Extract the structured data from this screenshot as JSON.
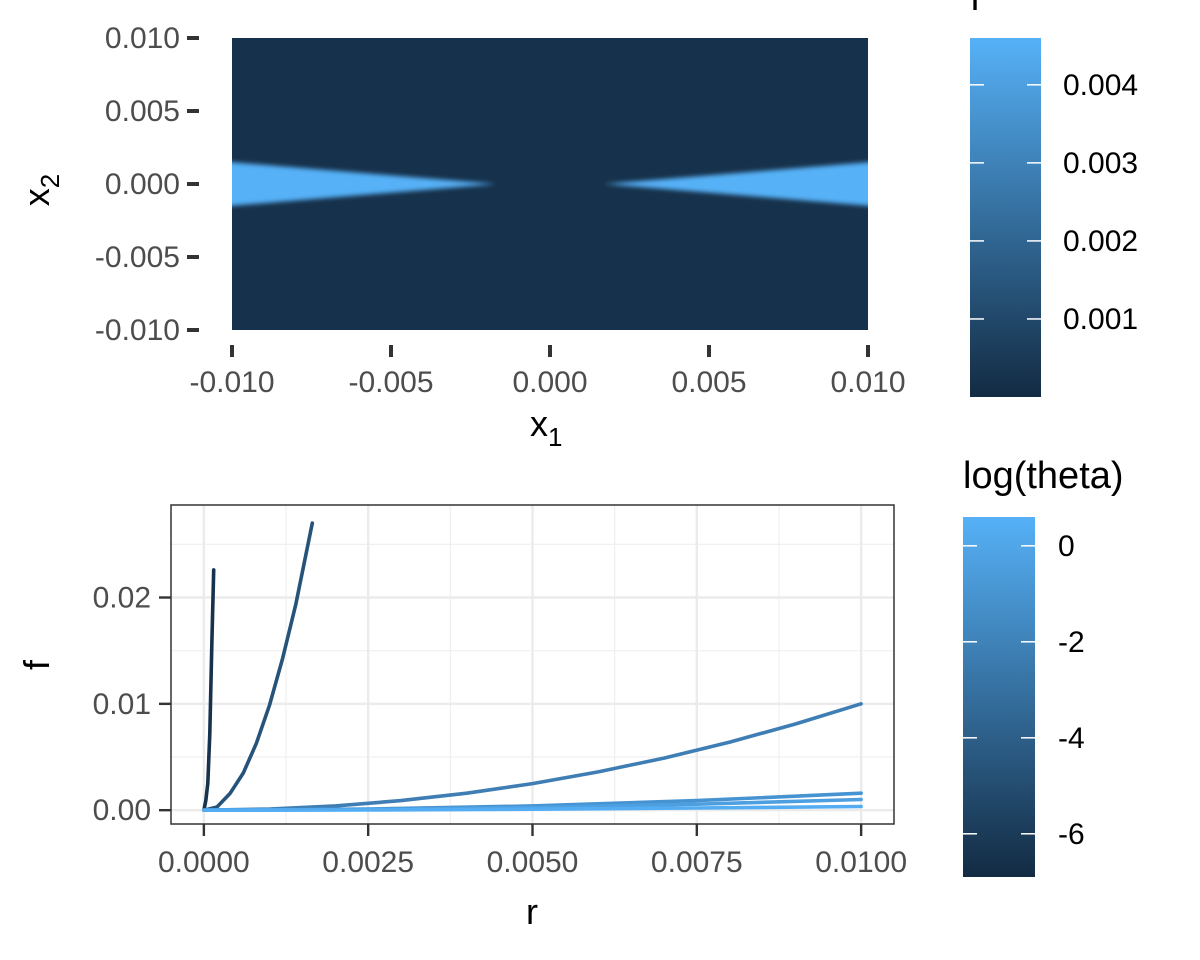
{
  "chart_data": [
    {
      "type": "heatmap",
      "xlabel": "x",
      "xlabel_sub": "1",
      "ylabel": "x",
      "ylabel_sub": "2",
      "xlim": [
        -0.01,
        0.01
      ],
      "ylim": [
        -0.01,
        0.01
      ],
      "x_ticks": [
        -0.01,
        -0.005,
        0,
        0.005,
        0.01
      ],
      "x_tick_labels": [
        "-0.010",
        "-0.005",
        "0.000",
        "0.005",
        "0.010"
      ],
      "y_ticks": [
        0.01,
        0.005,
        0,
        -0.005,
        -0.01
      ],
      "y_tick_labels": [
        "0.010",
        "0.005",
        "0.000",
        "-0.005",
        "-0.010"
      ],
      "grid": false,
      "fill_low": "#132b43",
      "fill_high": "#56b1f7",
      "background_value": 0.0002,
      "band_value": 0.0047,
      "band_half_width_at_edge": 0.00155,
      "band_inner_start": 0.0017,
      "legend": {
        "title": "f",
        "position": "right",
        "range": [
          0.0,
          0.0046
        ],
        "ticks": [
          0.004,
          0.003,
          0.002,
          0.001
        ],
        "tick_labels": [
          "0.004",
          "0.003",
          "0.002",
          "0.001"
        ]
      }
    },
    {
      "type": "line",
      "xlabel": "r",
      "ylabel": "f",
      "xlim": [
        -0.0005,
        0.0105
      ],
      "ylim": [
        -0.0013,
        0.0287
      ],
      "x_ticks": [
        0,
        0.0025,
        0.005,
        0.0075,
        0.01
      ],
      "x_tick_labels": [
        "0.0000",
        "0.0025",
        "0.0050",
        "0.0075",
        "0.0100"
      ],
      "y_ticks": [
        0,
        0.01,
        0.02
      ],
      "y_tick_labels": [
        "0.00",
        "0.01",
        "0.02"
      ],
      "grid": true,
      "series": [
        {
          "theta_log": -6.9,
          "color": "#16324d",
          "x": [
            0,
            3e-05,
            6e-05,
            9e-05,
            0.00012,
            0.00015
          ],
          "y": [
            0,
            0.0009,
            0.0025,
            0.0072,
            0.0155,
            0.0226
          ]
        },
        {
          "theta_log": -4.6,
          "color": "#25537a",
          "x": [
            0,
            0.0002,
            0.0004,
            0.0006,
            0.0008,
            0.001,
            0.0012,
            0.0014,
            0.00165
          ],
          "y": [
            0,
            0.0003,
            0.0016,
            0.0035,
            0.0063,
            0.0099,
            0.0143,
            0.0194,
            0.027
          ]
        },
        {
          "theta_log": -2.3,
          "color": "#3e7eb4",
          "x": [
            0,
            0.001,
            0.002,
            0.003,
            0.004,
            0.005,
            0.006,
            0.007,
            0.008,
            0.009,
            0.01
          ],
          "y": [
            0,
            0.0001,
            0.0004,
            0.0009,
            0.0016,
            0.0025,
            0.0036,
            0.0049,
            0.0064,
            0.0081,
            0.01
          ]
        },
        {
          "theta_log": -0.5,
          "color": "#4693d2",
          "x": [
            0,
            0.0025,
            0.005,
            0.0075,
            0.01
          ],
          "y": [
            0,
            0.0001,
            0.0004,
            0.0009,
            0.0016
          ]
        },
        {
          "theta_log": 0,
          "color": "#4d9fe0",
          "x": [
            0,
            0.0025,
            0.005,
            0.0075,
            0.01
          ],
          "y": [
            0,
            6e-05,
            0.00025,
            0.00056,
            0.001
          ]
        },
        {
          "theta_log": 0.6,
          "color": "#54adf2",
          "x": [
            0,
            0.0025,
            0.005,
            0.0075,
            0.01
          ],
          "y": [
            0,
            2e-05,
            9e-05,
            0.0002,
            0.00035
          ]
        }
      ],
      "legend": {
        "title": "log(theta)",
        "position": "right",
        "range": [
          -6.9,
          0.6
        ],
        "ticks": [
          0,
          -2,
          -4,
          -6
        ],
        "tick_labels": [
          "0",
          "-2",
          "-4",
          "-6"
        ]
      }
    }
  ]
}
